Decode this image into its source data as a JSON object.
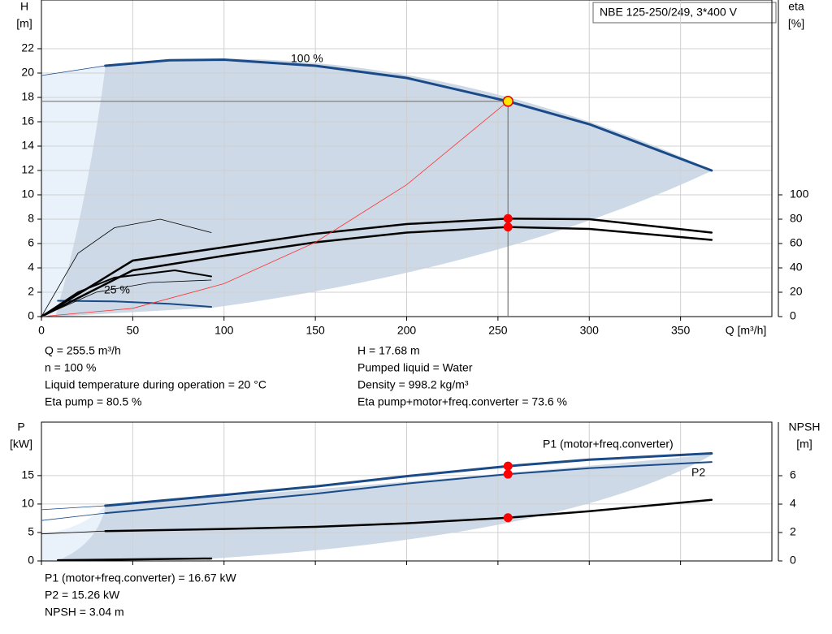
{
  "chart_data": [
    {
      "type": "line",
      "title": "NBE 125-250/249, 3*400 V",
      "ylabel": "H",
      "yunit": "[m]",
      "y2label": "eta",
      "y2unit": "[%]",
      "xlabel": "Q [m³/h]",
      "xlim": [
        0,
        400
      ],
      "xticks": [
        0,
        50,
        100,
        150,
        200,
        250,
        300,
        350
      ],
      "ylim": [
        0,
        26
      ],
      "yticks": [
        0,
        2,
        4,
        6,
        8,
        10,
        12,
        14,
        16,
        18,
        20,
        22
      ],
      "y2lim": [
        0,
        260
      ],
      "y2ticks": [
        0,
        20,
        40,
        60,
        80,
        100
      ],
      "grid": true,
      "x_tick_labels": true,
      "series": [
        {
          "name": "100 %",
          "color": "#1a4a87",
          "width": 3,
          "x": [
            35,
            70,
            100,
            150,
            200,
            255.5,
            300,
            367
          ],
          "values": [
            20.6,
            21.05,
            21.1,
            20.6,
            19.6,
            17.68,
            15.8,
            12.0
          ]
        },
        {
          "name": "25 %",
          "color": "#1a4a87",
          "width": 2,
          "x": [
            9,
            40,
            70,
            93
          ],
          "values": [
            1.3,
            1.25,
            1.05,
            0.8
          ]
        },
        {
          "color": "#1a4a87",
          "width": 0.8,
          "x": [
            0,
            35
          ],
          "values": [
            19.8,
            20.6
          ]
        },
        {
          "color": "#000000",
          "width": 2.5,
          "axis": "y2",
          "x": [
            0,
            50,
            100,
            150,
            200,
            255.5,
            300,
            367
          ],
          "values": [
            0,
            46,
            57,
            68,
            76,
            80.5,
            80,
            69
          ]
        },
        {
          "color": "#000000",
          "width": 2.5,
          "axis": "y2",
          "x": [
            0,
            50,
            100,
            150,
            200,
            255.5,
            300,
            367
          ],
          "values": [
            0,
            38,
            50,
            61,
            69,
            73.6,
            72,
            63
          ]
        },
        {
          "color": "#000000",
          "width": 0.8,
          "axis": "y2",
          "x": [
            0,
            20,
            40,
            65,
            93
          ],
          "values": [
            0,
            52,
            73,
            80,
            69
          ]
        },
        {
          "color": "#000000",
          "width": 2,
          "axis": "y2",
          "x": [
            0,
            20,
            40,
            73,
            93
          ],
          "values": [
            0,
            20,
            32,
            38,
            33
          ]
        },
        {
          "color": "#000000",
          "width": 0.8,
          "axis": "y2",
          "x": [
            0,
            30,
            60,
            93
          ],
          "values": [
            0,
            20,
            28,
            30
          ]
        },
        {
          "color": "#ff3030",
          "width": 0.8,
          "x": [
            0,
            50,
            100,
            150,
            200,
            255.5
          ],
          "values": [
            0,
            0.68,
            2.71,
            6.1,
            10.83,
            17.68
          ]
        }
      ],
      "duty": {
        "x": 255.5,
        "y": 17.68,
        "y2": [
          80.5,
          73.6
        ]
      },
      "info_left": [
        "Q = 255.5 m³/h",
        "n = 100 %",
        "Liquid temperature during operation = 20 °C",
        "Eta pump = 80.5 %"
      ],
      "info_right": [
        "H = 17.68 m",
        "Pumped liquid = Water",
        "Density = 998.2 kg/m³",
        "Eta pump+motor+freq.converter = 73.6 %"
      ]
    },
    {
      "type": "line",
      "ylabel": "P",
      "yunit": "[kW]",
      "y2label": "NPSH",
      "y2unit": "[m]",
      "xlim": [
        0,
        400
      ],
      "xticks": [
        0,
        50,
        100,
        150,
        200,
        250,
        300,
        350
      ],
      "ylim": [
        0,
        24.4
      ],
      "yticks": [
        0,
        5,
        10,
        15
      ],
      "y2lim": [
        0,
        9.77
      ],
      "y2ticks": [
        0,
        2,
        4,
        6
      ],
      "grid": true,
      "x_tick_labels": false,
      "series": [
        {
          "name": "P1 (motor+freq.converter)",
          "color": "#1a4a87",
          "width": 3,
          "x": [
            35,
            100,
            150,
            200,
            255.5,
            300,
            367
          ],
          "values": [
            9.7,
            11.6,
            13.1,
            14.9,
            16.67,
            17.8,
            18.9
          ]
        },
        {
          "name": "P2",
          "color": "#1a4a87",
          "width": 2,
          "x": [
            35,
            100,
            150,
            200,
            255.5,
            300,
            367
          ],
          "values": [
            8.4,
            10.3,
            11.8,
            13.6,
            15.26,
            16.3,
            17.4
          ]
        },
        {
          "color": "#000000",
          "width": 2.5,
          "axis": "y2",
          "x": [
            35,
            100,
            150,
            200,
            255.5,
            300,
            367
          ],
          "values": [
            2.1,
            2.25,
            2.4,
            2.65,
            3.04,
            3.5,
            4.3
          ]
        },
        {
          "color": "#1a4a87",
          "width": 0.8,
          "x": [
            0,
            35
          ],
          "values": [
            9.0,
            9.7
          ]
        },
        {
          "color": "#1a4a87",
          "width": 0.8,
          "x": [
            0,
            35
          ],
          "values": [
            7.1,
            8.4
          ]
        },
        {
          "color": "#000000",
          "width": 0.8,
          "axis": "y2",
          "x": [
            0,
            35
          ],
          "values": [
            1.9,
            2.1
          ]
        },
        {
          "color": "#000000",
          "width": 2.5,
          "axis": "y2",
          "x": [
            9,
            93
          ],
          "values": [
            0.05,
            0.17
          ]
        }
      ],
      "duty": {
        "x": 255.5,
        "y": [
          16.67,
          15.26
        ],
        "y2": [
          3.04
        ]
      },
      "info_left": [
        "P1 (motor+freq.converter) = 16.67 kW",
        "P2 = 15.26 kW",
        "NPSH = 3.04 m"
      ]
    }
  ]
}
